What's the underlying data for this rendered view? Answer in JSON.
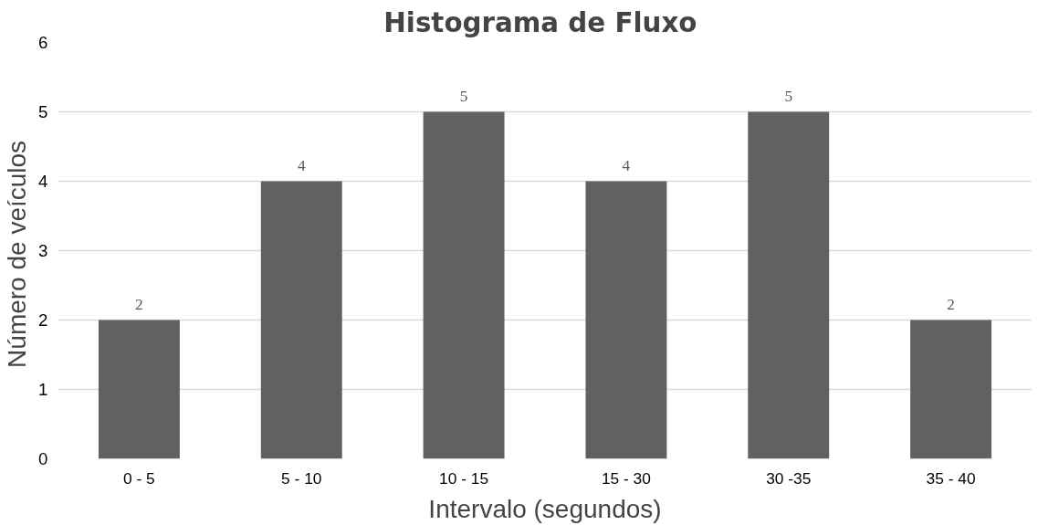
{
  "chart_data": {
    "type": "bar",
    "title": "Histograma  de Fluxo",
    "xlabel": "Intervalo (segundos)",
    "ylabel": "Número de  veículos",
    "categories": [
      "0 - 5",
      "5 - 10",
      "10 - 15",
      "15 - 30",
      "30 -35",
      "35 - 40"
    ],
    "values": [
      2,
      4,
      5,
      4,
      5,
      2
    ],
    "color": "#616161",
    "ylim": [
      0,
      6
    ],
    "yticks": [
      0,
      1,
      2,
      3,
      4,
      5,
      6
    ],
    "grid": "y",
    "data_labels": true
  }
}
